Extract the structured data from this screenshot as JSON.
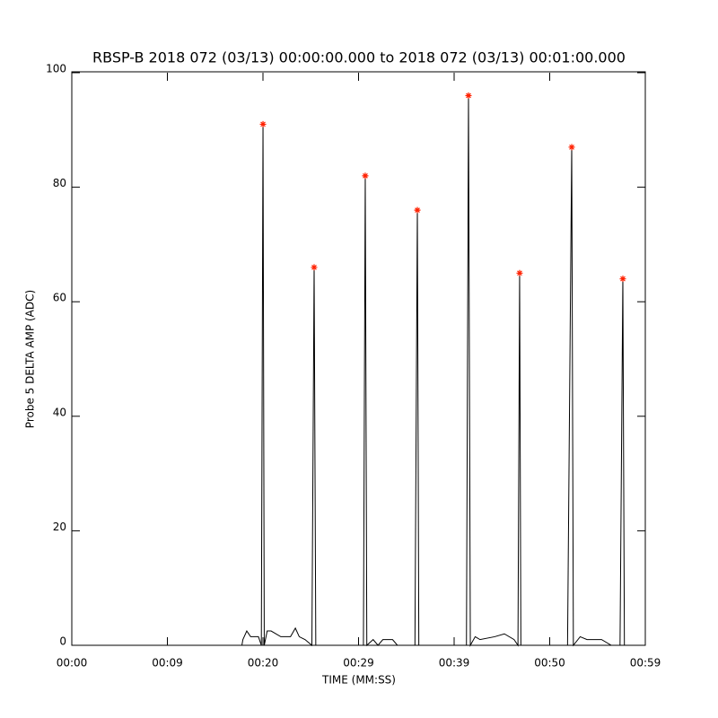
{
  "chart_data": {
    "type": "line",
    "title": "RBSP-B 2018 072 (03/13) 00:00:00.000 to 2018 072 (03/13) 00:01:00.000",
    "x_label": "TIME (MM:SS)",
    "y_label": "Probe 5 DELTA AMP (ADC)",
    "xlim": [
      0,
      59
    ],
    "ylim": [
      0,
      100
    ],
    "xticks": [
      {
        "value": 0,
        "label": "00:00"
      },
      {
        "value": 9.8333,
        "label": "00:09"
      },
      {
        "value": 19.6667,
        "label": "00:20"
      },
      {
        "value": 29.5,
        "label": "00:29"
      },
      {
        "value": 39.3333,
        "label": "00:39"
      },
      {
        "value": 49.1667,
        "label": "00:50"
      },
      {
        "value": 59,
        "label": "00:59"
      }
    ],
    "yticks": [
      0,
      20,
      40,
      60,
      80,
      100
    ],
    "series": [
      {
        "style": "line",
        "color": "#000000",
        "x": [
          0,
          17.5,
          17.6,
          18.0,
          18.4,
          19.2,
          19.5,
          19.67,
          19.8,
          20.1,
          20.5,
          21.5,
          22.5,
          23.0,
          23.4,
          24.0,
          24.7,
          24.93,
          25.1,
          25.5,
          26,
          29.0,
          30.0,
          30.19,
          30.35,
          31,
          31.5,
          32,
          33.0,
          33.5,
          34.5,
          35.3,
          35.55,
          35.7,
          36.5,
          39.0,
          40.0,
          40.6,
          40.81,
          41.0,
          41.5,
          42.0,
          43.5,
          44.5,
          45.5,
          45.9,
          46.07,
          46.2,
          48,
          51.0,
          51.43,
          51.6,
          52.3,
          53.0,
          54.5,
          55.5,
          56.4,
          56.69,
          56.85,
          58,
          59
        ],
        "values": [
          0,
          0,
          1,
          2.5,
          1.5,
          1.5,
          0,
          91,
          0,
          2.5,
          2.5,
          1.5,
          1.5,
          3,
          1.5,
          1,
          0,
          66,
          0,
          0,
          0,
          0,
          0,
          82,
          0,
          1,
          0,
          1,
          1,
          0,
          0,
          0,
          76,
          0,
          0,
          0,
          0,
          0,
          96,
          0,
          1.5,
          1,
          1.5,
          2,
          1,
          0,
          65,
          0,
          0,
          0,
          87,
          0,
          1.5,
          1,
          1,
          0,
          0,
          64,
          0,
          0,
          0
        ]
      },
      {
        "style": "asterisk",
        "color": "#ff2000",
        "x": [
          19.67,
          24.93,
          30.19,
          35.55,
          40.81,
          46.07,
          51.43,
          56.69
        ],
        "values": [
          91,
          66,
          82,
          76,
          96,
          65,
          87,
          64
        ]
      }
    ]
  }
}
